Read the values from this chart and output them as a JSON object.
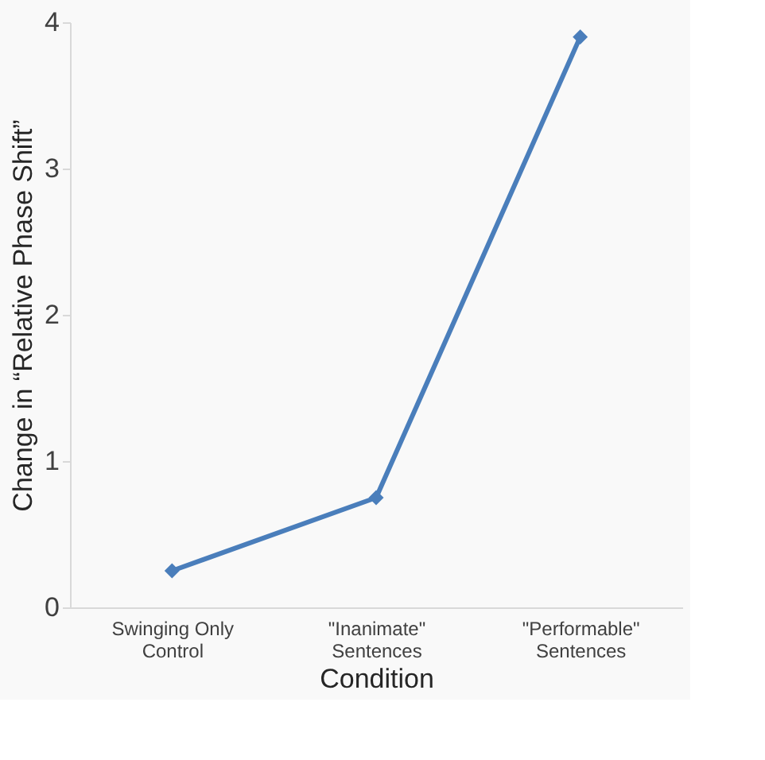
{
  "chart_data": {
    "type": "line",
    "xlabel": "Condition",
    "ylabel": "Change in “Relative Phase Shift”",
    "categories": [
      "Swinging Only Control",
      "\"Inanimate\" Sentences",
      "\"Performable\" Sentences"
    ],
    "series": [
      {
        "color": "#4a7ebb",
        "values": [
          0.25,
          0.75,
          3.9
        ]
      }
    ],
    "ylim": [
      0,
      4
    ],
    "yticks": [
      0,
      1,
      2,
      3,
      4
    ],
    "grid": false,
    "marker": "diamond",
    "line_style": "solid"
  }
}
